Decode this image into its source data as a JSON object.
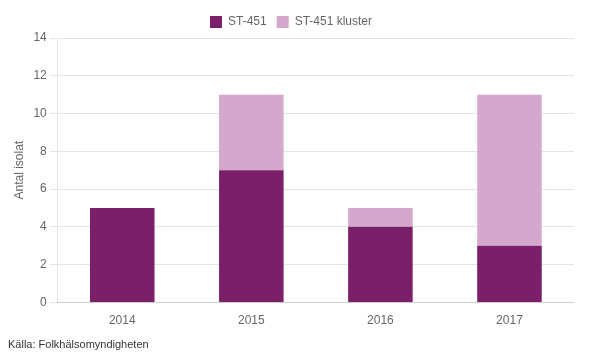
{
  "chart_data": {
    "type": "bar",
    "stacked": true,
    "categories": [
      "2014",
      "2015",
      "2016",
      "2017"
    ],
    "series": [
      {
        "name": "ST-451",
        "color": "#7B1F6A",
        "values": [
          5,
          7,
          4,
          3
        ]
      },
      {
        "name": "ST-451 kluster",
        "color": "#D4A8CC",
        "values": [
          0,
          4,
          1,
          8
        ]
      }
    ],
    "ylabel": "Antal isolat",
    "annotations": [
      "Källa: Folkhälsomyndigheten"
    ],
    "ylim": [
      0,
      14
    ],
    "yticks": [
      0,
      2,
      4,
      6,
      8,
      10,
      12,
      14
    ],
    "grid": true,
    "legend": "top"
  }
}
